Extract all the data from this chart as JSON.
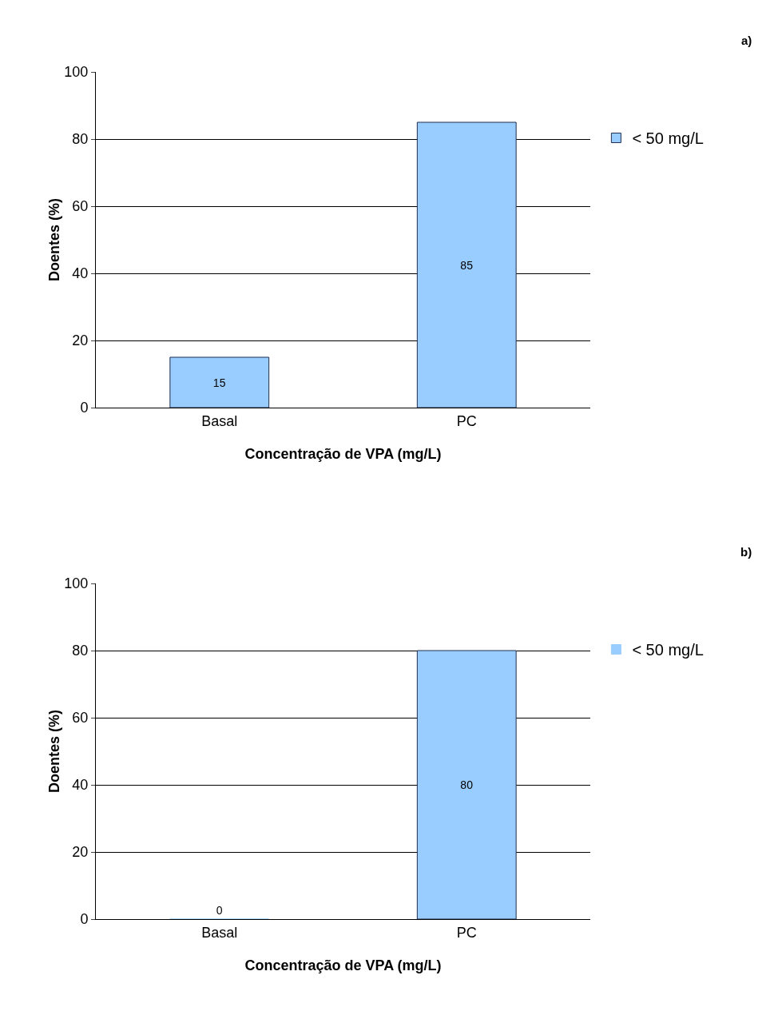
{
  "chart_data": [
    {
      "type": "bar",
      "annotations": [
        "a)"
      ],
      "xlabel": "Concentração de VPA (mg/L)",
      "ylabel": "Doentes (%)",
      "categories": [
        "Basal",
        "PC"
      ],
      "series": [
        {
          "name": "< 50 mg/L",
          "color": "#99ccff",
          "values": [
            15,
            85
          ]
        }
      ],
      "ylim": [
        0,
        100
      ],
      "yticks": [
        0,
        20,
        40,
        60,
        80,
        100
      ],
      "grid": "y",
      "legend": "right",
      "data_labels": true
    },
    {
      "type": "bar",
      "annotations": [
        "b)"
      ],
      "xlabel": "Concentração de VPA (mg/L)",
      "ylabel": "Doentes (%)",
      "categories": [
        "Basal",
        "PC"
      ],
      "series": [
        {
          "name": "< 50 mg/L",
          "color": "#99ccff",
          "values": [
            0,
            80
          ]
        }
      ],
      "ylim": [
        0,
        100
      ],
      "yticks": [
        0,
        20,
        40,
        60,
        80,
        100
      ],
      "grid": "y",
      "legend": "right",
      "data_labels": true
    }
  ]
}
